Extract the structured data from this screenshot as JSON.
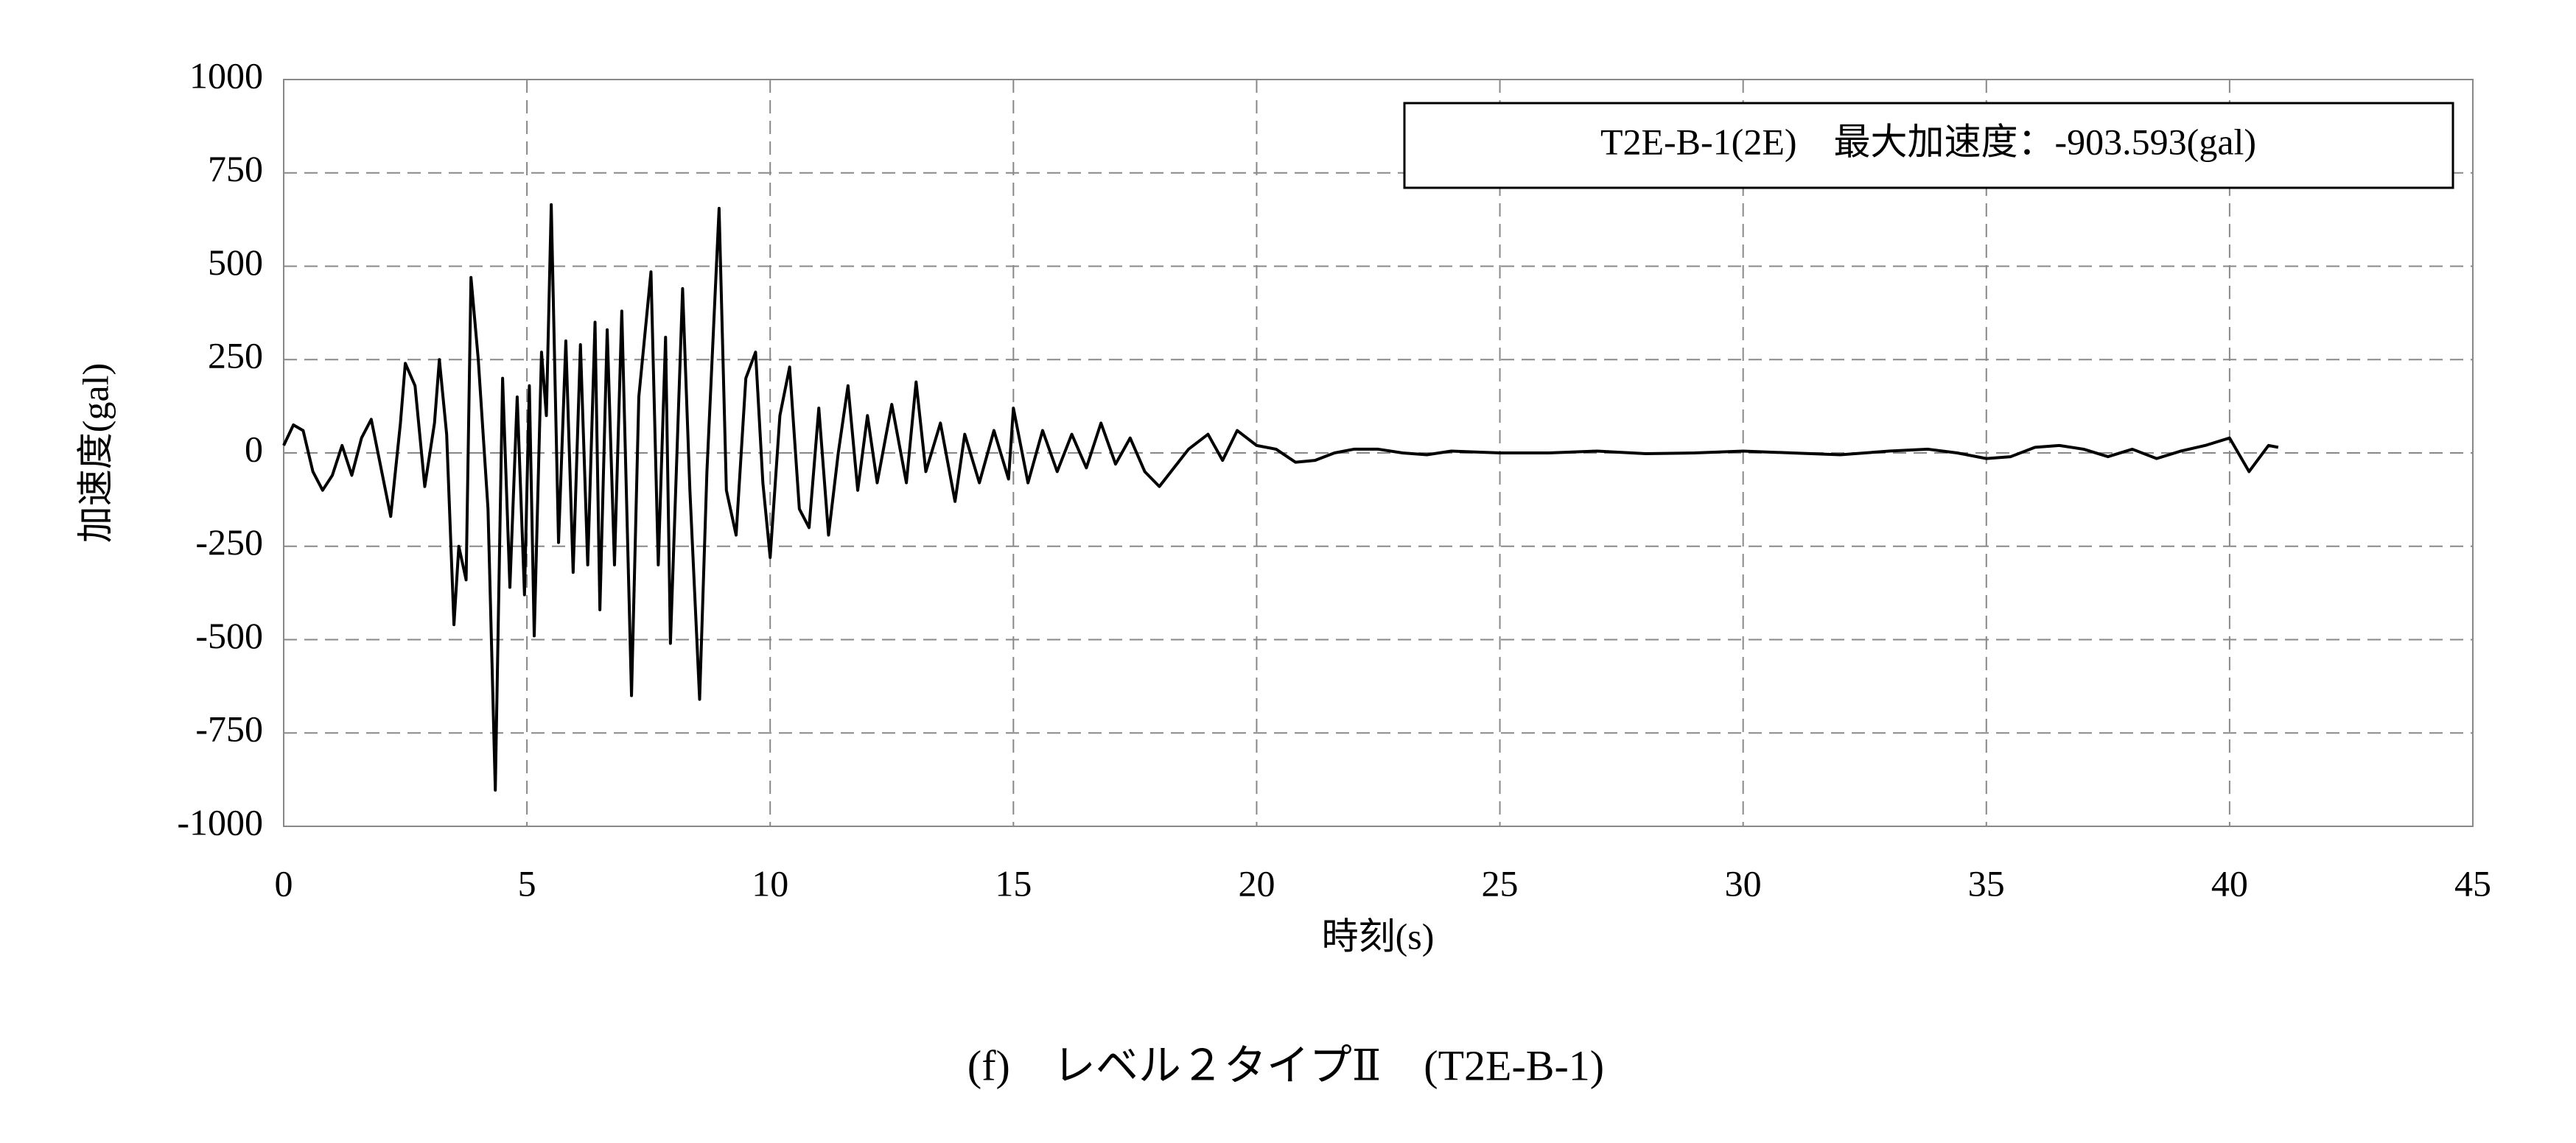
{
  "chart_data": {
    "type": "line",
    "caption": "(f)　レベル２タイプⅡ　(T2E-B-1)",
    "xlabel": "時刻(s)",
    "ylabel": "加速度(gal)",
    "x": [
      0,
      0.2,
      0.4,
      0.6,
      0.8,
      1.0,
      1.2,
      1.4,
      1.6,
      1.8,
      2.0,
      2.2,
      2.4,
      2.5,
      2.7,
      2.9,
      3.1,
      3.2,
      3.35,
      3.5,
      3.6,
      3.75,
      3.85,
      4.0,
      4.2,
      4.35,
      4.5,
      4.65,
      4.8,
      4.95,
      5.05,
      5.15,
      5.3,
      5.4,
      5.5,
      5.65,
      5.8,
      5.95,
      6.1,
      6.25,
      6.4,
      6.5,
      6.65,
      6.8,
      6.95,
      7.15,
      7.3,
      7.55,
      7.7,
      7.85,
      7.95,
      8.2,
      8.35,
      8.55,
      8.7,
      8.95,
      9.1,
      9.3,
      9.5,
      9.7,
      9.85,
      10.0,
      10.2,
      10.4,
      10.6,
      10.8,
      11.0,
      11.2,
      11.4,
      11.6,
      11.8,
      12.0,
      12.2,
      12.5,
      12.8,
      13.0,
      13.2,
      13.5,
      13.8,
      14.0,
      14.3,
      14.6,
      14.9,
      15.0,
      15.3,
      15.6,
      15.9,
      16.2,
      16.5,
      16.8,
      17.1,
      17.4,
      17.7,
      18.0,
      18.3,
      18.6,
      19.0,
      19.3,
      19.6,
      20.0,
      20.4,
      20.8,
      21.2,
      21.6,
      22.0,
      22.5,
      23.0,
      23.5,
      24.0,
      25.0,
      26.0,
      27.0,
      28.0,
      29.0,
      30.0,
      31.0,
      32.0,
      33.0,
      33.8,
      34.4,
      35.0,
      35.5,
      36.0,
      36.5,
      37.0,
      37.5,
      38.0,
      38.5,
      39.0,
      39.5,
      40.0,
      40.4,
      40.8,
      41.0
    ],
    "series": [
      {
        "name": "T2E-B-1(2E)　最大加速度：-903.593(gal)",
        "color": "#000000",
        "values": [
          20,
          75,
          60,
          -50,
          -100,
          -60,
          20,
          -60,
          40,
          90,
          -40,
          -170,
          80,
          240,
          180,
          -90,
          80,
          250,
          50,
          -460,
          -250,
          -340,
          470,
          250,
          -150,
          -903,
          200,
          -360,
          150,
          -380,
          180,
          -490,
          270,
          100,
          665,
          -240,
          300,
          -320,
          290,
          -300,
          350,
          -420,
          330,
          -300,
          380,
          -650,
          150,
          485,
          -300,
          310,
          -510,
          440,
          -100,
          -660,
          -50,
          655,
          -100,
          -220,
          200,
          270,
          -80,
          -280,
          100,
          230,
          -150,
          -200,
          120,
          -220,
          0,
          180,
          -100,
          100,
          -80,
          130,
          -80,
          190,
          -50,
          80,
          -130,
          50,
          -80,
          60,
          -70,
          120,
          -80,
          60,
          -50,
          50,
          -40,
          80,
          -30,
          40,
          -50,
          -90,
          -40,
          10,
          50,
          -20,
          60,
          20,
          10,
          -25,
          -20,
          0,
          10,
          10,
          0,
          -5,
          5,
          0,
          0,
          5,
          -2,
          0,
          5,
          0,
          -5,
          5,
          10,
          0,
          -15,
          -10,
          15,
          20,
          10,
          -10,
          10,
          -15,
          5,
          20,
          40,
          -50,
          20,
          15
        ]
      }
    ],
    "xlim": [
      0,
      45
    ],
    "xticks": [
      0,
      5,
      10,
      15,
      20,
      25,
      30,
      35,
      40,
      45
    ],
    "ylim": [
      -1000,
      1000
    ],
    "yticks": [
      -1000,
      -750,
      -500,
      -250,
      0,
      250,
      500,
      750,
      1000
    ],
    "grid": true,
    "legend": "upper right"
  }
}
